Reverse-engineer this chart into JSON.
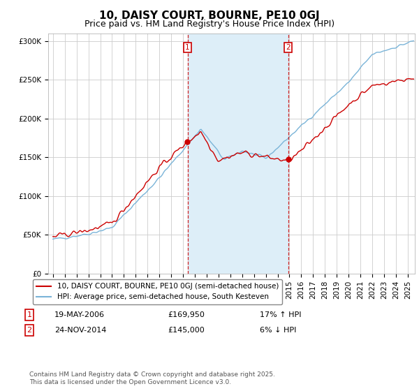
{
  "title": "10, DAISY COURT, BOURNE, PE10 0GJ",
  "subtitle": "Price paid vs. HM Land Registry's House Price Index (HPI)",
  "ylim": [
    0,
    310000
  ],
  "yticks": [
    0,
    50000,
    100000,
    150000,
    200000,
    250000,
    300000
  ],
  "ytick_labels": [
    "£0",
    "£50K",
    "£100K",
    "£150K",
    "£200K",
    "£250K",
    "£300K"
  ],
  "sale1_year": 2006.38,
  "sale1_price": 169950,
  "sale1_date": "19-MAY-2006",
  "sale1_hpi_pct": "17% ↑ HPI",
  "sale2_year": 2014.9,
  "sale2_price": 145000,
  "sale2_date": "24-NOV-2014",
  "sale2_hpi_pct": "6% ↓ HPI",
  "hpi_color": "#7ab4d8",
  "price_color": "#cc0000",
  "shaded_color": "#ddeef8",
  "grid_color": "#cccccc",
  "background_color": "#ffffff",
  "legend_label_price": "10, DAISY COURT, BOURNE, PE10 0GJ (semi-detached house)",
  "legend_label_hpi": "HPI: Average price, semi-detached house, South Kesteven",
  "footnote": "Contains HM Land Registry data © Crown copyright and database right 2025.\nThis data is licensed under the Open Government Licence v3.0.",
  "title_fontsize": 11,
  "subtitle_fontsize": 9,
  "tick_fontsize": 7.5,
  "legend_fontsize": 7.5,
  "footnote_fontsize": 6.5
}
